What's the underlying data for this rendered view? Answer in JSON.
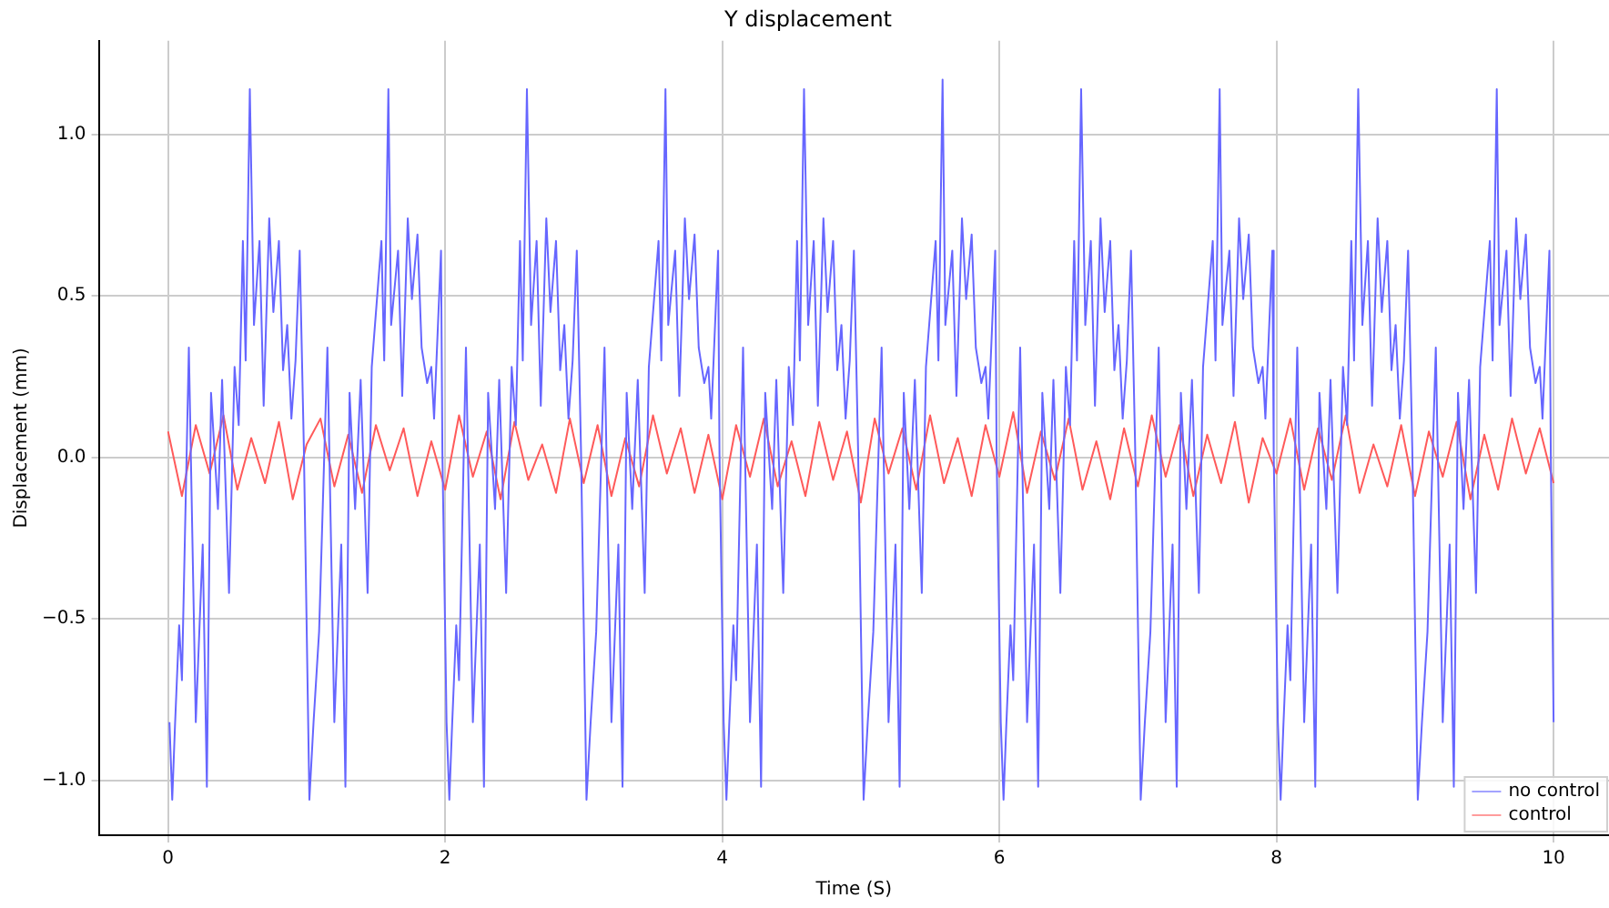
{
  "chart_data": {
    "type": "line",
    "title": "Y displacement",
    "xlabel": "Time (S)",
    "ylabel": "Displacement (mm)",
    "xlim": [
      -0.5,
      10.4
    ],
    "xticks": [
      0,
      2,
      4,
      6,
      8,
      10
    ],
    "ylim": [
      -1.17,
      1.29
    ],
    "yticks": [
      {
        "value": -1,
        "label": "−1.0"
      },
      {
        "value": -0.5,
        "label": "−0.5"
      },
      {
        "value": 0,
        "label": "0.0"
      },
      {
        "value": 0.5,
        "label": "0.5"
      },
      {
        "value": 1,
        "label": "1.0"
      }
    ],
    "grid": true,
    "legend": "bottom right",
    "marker": "none",
    "line_style": "solid",
    "series": [
      {
        "name": "no control",
        "color": "#6666ff",
        "type": "line",
        "x": [
          0.01,
          0.03,
          0.05,
          0.08,
          0.1,
          0.15,
          0.2,
          0.25,
          0.28,
          0.31,
          0.36,
          0.39,
          0.44,
          0.48,
          0.51,
          0.54,
          0.56,
          0.59,
          0.62,
          0.66,
          0.69,
          0.73,
          0.76,
          0.8,
          0.83,
          0.86,
          0.89,
          0.92,
          0.95,
          0.98,
          1.02,
          1.05,
          1.09,
          1.15,
          1.2,
          1.25,
          1.28,
          1.31,
          1.35,
          1.39,
          1.44,
          1.47,
          1.54,
          1.56,
          1.59,
          1.61,
          1.66,
          1.69,
          1.73,
          1.76,
          1.8,
          1.83,
          1.87,
          1.9,
          1.92,
          1.97,
          1.98,
          2.01,
          2.03,
          2.05,
          2.08,
          2.1,
          2.15,
          2.2,
          2.25,
          2.28,
          2.31,
          2.36,
          2.39,
          2.44,
          2.48,
          2.51,
          2.54,
          2.56,
          2.59,
          2.62,
          2.66,
          2.69,
          2.73,
          2.76,
          2.8,
          2.83,
          2.86,
          2.89,
          2.92,
          2.95,
          2.98,
          3.02,
          3.05,
          3.09,
          3.15,
          3.2,
          3.25,
          3.28,
          3.31,
          3.35,
          3.39,
          3.44,
          3.47,
          3.54,
          3.56,
          3.59,
          3.61,
          3.66,
          3.69,
          3.73,
          3.76,
          3.8,
          3.83,
          3.87,
          3.9,
          3.92,
          3.97,
          3.98,
          4.01,
          4.03,
          4.05,
          4.08,
          4.1,
          4.15,
          4.2,
          4.25,
          4.28,
          4.31,
          4.36,
          4.39,
          4.44,
          4.48,
          4.51,
          4.54,
          4.56,
          4.59,
          4.62,
          4.66,
          4.69,
          4.73,
          4.76,
          4.8,
          4.83,
          4.86,
          4.89,
          4.92,
          4.95,
          4.98,
          5.02,
          5.05,
          5.09,
          5.15,
          5.2,
          5.25,
          5.28,
          5.31,
          5.35,
          5.39,
          5.44,
          5.47,
          5.54,
          5.56,
          5.59,
          5.61,
          5.66,
          5.69,
          5.73,
          5.76,
          5.8,
          5.83,
          5.87,
          5.9,
          5.92,
          5.97,
          5.98,
          6.01,
          6.03,
          6.05,
          6.08,
          6.1,
          6.15,
          6.2,
          6.25,
          6.28,
          6.31,
          6.36,
          6.39,
          6.44,
          6.48,
          6.51,
          6.54,
          6.56,
          6.59,
          6.62,
          6.66,
          6.69,
          6.73,
          6.76,
          6.8,
          6.83,
          6.86,
          6.89,
          6.92,
          6.95,
          6.98,
          7.02,
          7.05,
          7.09,
          7.15,
          7.2,
          7.25,
          7.28,
          7.31,
          7.35,
          7.39,
          7.44,
          7.47,
          7.54,
          7.56,
          7.59,
          7.61,
          7.66,
          7.69,
          7.73,
          7.76,
          7.8,
          7.83,
          7.87,
          7.9,
          7.92,
          7.97,
          7.98,
          8.01,
          8.03,
          8.05,
          8.08,
          8.1,
          8.15,
          8.2,
          8.25,
          8.28,
          8.31,
          8.36,
          8.39,
          8.44,
          8.48,
          8.51,
          8.54,
          8.56,
          8.59,
          8.62,
          8.66,
          8.69,
          8.73,
          8.76,
          8.8,
          8.83,
          8.86,
          8.89,
          8.92,
          8.95,
          8.98,
          9.02,
          9.05,
          9.09,
          9.15,
          9.2,
          9.25,
          9.28,
          9.31,
          9.35,
          9.39,
          9.44,
          9.47,
          9.54,
          9.56,
          9.59,
          9.61,
          9.66,
          9.69,
          9.73,
          9.76,
          9.8,
          9.83,
          9.87,
          9.9,
          9.92,
          9.97,
          9.98,
          10.0
        ],
        "values": [
          -0.82,
          -1.06,
          -0.83,
          -0.52,
          -0.69,
          0.34,
          -0.82,
          -0.27,
          -1.02,
          0.2,
          -0.16,
          0.24,
          -0.42,
          0.28,
          0.1,
          0.67,
          0.3,
          1.14,
          0.41,
          0.67,
          0.16,
          0.74,
          0.45,
          0.67,
          0.27,
          0.41,
          0.12,
          0.3,
          0.64,
          0.03,
          -1.06,
          -0.82,
          -0.54,
          0.34,
          -0.82,
          -0.27,
          -1.02,
          0.2,
          -0.16,
          0.24,
          -0.42,
          0.28,
          0.67,
          0.3,
          1.14,
          0.41,
          0.64,
          0.19,
          0.74,
          0.49,
          0.69,
          0.34,
          0.23,
          0.28,
          0.12,
          0.64,
          0.01,
          -0.82,
          -1.06,
          -0.83,
          -0.52,
          -0.69,
          0.34,
          -0.82,
          -0.27,
          -1.02,
          0.2,
          -0.16,
          0.24,
          -0.42,
          0.28,
          0.1,
          0.67,
          0.3,
          1.14,
          0.41,
          0.67,
          0.16,
          0.74,
          0.45,
          0.67,
          0.27,
          0.41,
          0.12,
          0.3,
          0.64,
          0.03,
          -1.06,
          -0.82,
          -0.54,
          0.34,
          -0.82,
          -0.27,
          -1.02,
          0.2,
          -0.16,
          0.24,
          -0.42,
          0.28,
          0.67,
          0.3,
          1.14,
          0.41,
          0.64,
          0.19,
          0.74,
          0.49,
          0.69,
          0.34,
          0.23,
          0.28,
          0.12,
          0.64,
          0.01,
          -0.82,
          -1.06,
          -0.83,
          -0.52,
          -0.69,
          0.34,
          -0.82,
          -0.27,
          -1.02,
          0.2,
          -0.16,
          0.24,
          -0.42,
          0.28,
          0.1,
          0.67,
          0.3,
          1.14,
          0.41,
          0.67,
          0.16,
          0.74,
          0.45,
          0.67,
          0.27,
          0.41,
          0.12,
          0.3,
          0.64,
          0.03,
          -1.06,
          -0.82,
          -0.54,
          0.34,
          -0.82,
          -0.27,
          -1.02,
          0.2,
          -0.16,
          0.24,
          -0.42,
          0.28,
          0.67,
          0.3,
          1.17,
          0.41,
          0.64,
          0.19,
          0.74,
          0.49,
          0.69,
          0.34,
          0.23,
          0.28,
          0.12,
          0.64,
          0.01,
          -0.82,
          -1.06,
          -0.83,
          -0.52,
          -0.69,
          0.34,
          -0.82,
          -0.27,
          -1.02,
          0.2,
          -0.16,
          0.24,
          -0.42,
          0.28,
          0.1,
          0.67,
          0.3,
          1.14,
          0.41,
          0.67,
          0.16,
          0.74,
          0.45,
          0.67,
          0.27,
          0.41,
          0.12,
          0.3,
          0.64,
          0.03,
          -1.06,
          -0.82,
          -0.54,
          0.34,
          -0.82,
          -0.27,
          -1.02,
          0.2,
          -0.16,
          0.24,
          -0.42,
          0.28,
          0.67,
          0.3,
          1.14,
          0.41,
          0.64,
          0.19,
          0.74,
          0.49,
          0.69,
          0.34,
          0.23,
          0.28,
          0.12,
          0.64,
          0.01,
          -0.82,
          -1.06,
          -0.83,
          -0.52,
          -0.69,
          0.34,
          -0.82,
          -0.27,
          -1.02,
          0.2,
          -0.16,
          0.24,
          -0.42,
          0.28,
          0.1,
          0.67,
          0.3,
          1.14,
          0.41,
          0.67,
          0.16,
          0.74,
          0.45,
          0.67,
          0.27,
          0.41,
          0.12,
          0.3,
          0.64,
          0.03,
          -1.06,
          -0.82,
          -0.54,
          0.34,
          -0.82,
          -0.27,
          -1.02,
          0.2,
          -0.16,
          0.24,
          -0.42,
          0.28,
          0.67,
          0.3,
          1.14,
          0.41,
          0.64,
          0.19,
          0.74,
          0.49,
          0.69,
          0.34,
          0.23,
          0.28,
          0.12,
          0.64,
          0.01,
          -0.82
        ]
      },
      {
        "name": "control",
        "color": "#ff5a5a",
        "type": "line",
        "x": [
          0,
          0.1,
          0.2,
          0.3,
          0.4,
          0.5,
          0.6,
          0.7,
          0.8,
          0.9,
          1,
          1.1,
          1.2,
          1.3,
          1.4,
          1.5,
          1.6,
          1.7,
          1.8,
          1.9,
          2,
          2.1,
          2.2,
          2.3,
          2.4,
          2.5,
          2.6,
          2.7,
          2.8,
          2.9,
          3,
          3.1,
          3.2,
          3.3,
          3.4,
          3.5,
          3.6,
          3.7,
          3.8,
          3.9,
          4,
          4.1,
          4.2,
          4.3,
          4.4,
          4.5,
          4.6,
          4.7,
          4.8,
          4.9,
          5,
          5.1,
          5.2,
          5.3,
          5.4,
          5.5,
          5.6,
          5.7,
          5.8,
          5.9,
          6,
          6.1,
          6.2,
          6.3,
          6.4,
          6.5,
          6.6,
          6.7,
          6.8,
          6.9,
          7,
          7.1,
          7.2,
          7.3,
          7.4,
          7.5,
          7.6,
          7.7,
          7.8,
          7.9,
          8,
          8.1,
          8.2,
          8.3,
          8.4,
          8.5,
          8.6,
          8.7,
          8.8,
          8.9,
          9,
          9.1,
          9.2,
          9.3,
          9.4,
          9.5,
          9.6,
          9.7,
          9.8,
          9.9,
          10
        ],
        "values": [
          0.08,
          -0.12,
          0.1,
          -0.05,
          0.13,
          -0.1,
          0.06,
          -0.08,
          0.11,
          -0.13,
          0.04,
          0.12,
          -0.09,
          0.07,
          -0.11,
          0.1,
          -0.04,
          0.09,
          -0.12,
          0.05,
          -0.1,
          0.13,
          -0.06,
          0.08,
          -0.13,
          0.11,
          -0.07,
          0.04,
          -0.11,
          0.12,
          -0.08,
          0.1,
          -0.12,
          0.06,
          -0.09,
          0.13,
          -0.05,
          0.09,
          -0.11,
          0.07,
          -0.13,
          0.1,
          -0.06,
          0.12,
          -0.09,
          0.05,
          -0.12,
          0.11,
          -0.07,
          0.08,
          -0.14,
          0.12,
          -0.05,
          0.09,
          -0.1,
          0.13,
          -0.08,
          0.06,
          -0.12,
          0.1,
          -0.06,
          0.14,
          -0.11,
          0.08,
          -0.07,
          0.12,
          -0.1,
          0.05,
          -0.13,
          0.09,
          -0.09,
          0.13,
          -0.06,
          0.1,
          -0.12,
          0.07,
          -0.08,
          0.11,
          -0.14,
          0.06,
          -0.05,
          0.12,
          -0.1,
          0.09,
          -0.07,
          0.13,
          -0.11,
          0.04,
          -0.09,
          0.1,
          -0.12,
          0.08,
          -0.06,
          0.11,
          -0.13,
          0.07,
          -0.1,
          0.12,
          -0.05,
          0.09,
          -0.08
        ]
      }
    ]
  }
}
